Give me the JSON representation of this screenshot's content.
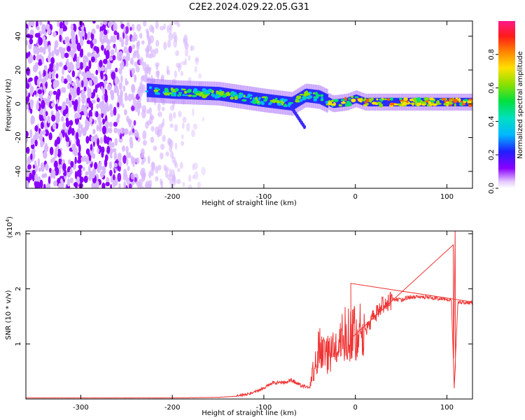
{
  "title": "C2E2.2024.029.22.05.G31",
  "colors": {
    "snr_line": "#ef3434",
    "axis": "#000000"
  },
  "chart_data": [
    {
      "type": "heatmap",
      "title": "C2E2.2024.029.22.05.G31",
      "xlabel": "Height of straight line (km)",
      "ylabel": "Frequency (Hz)",
      "xlim": [
        -360,
        128
      ],
      "ylim": [
        -50,
        49
      ],
      "xticks": [
        -300,
        -200,
        -100,
        0,
        100
      ],
      "yticks": [
        -40,
        -20,
        0,
        20,
        40
      ],
      "colorbar": {
        "label": "Normalized spectral amplitude",
        "range": [
          0,
          1
        ],
        "ticks": [
          0.0,
          0.2,
          0.4,
          0.6,
          0.8
        ]
      },
      "regions": [
        {
          "name": "noise",
          "x_range": [
            -360,
            -165
          ],
          "y_range": [
            -50,
            49
          ],
          "amplitude": 0.08
        },
        {
          "name": "signal_trace",
          "path": [
            [
              -228,
              8
            ],
            [
              -200,
              7
            ],
            [
              -150,
              6
            ],
            [
              -100,
              2
            ],
            [
              -70,
              0
            ],
            [
              -55,
              5
            ],
            [
              -40,
              4
            ],
            [
              -25,
              0
            ],
            [
              -10,
              1
            ],
            [
              0,
              3
            ],
            [
              10,
              1
            ],
            [
              40,
              1
            ],
            [
              100,
              1
            ],
            [
              128,
              1
            ]
          ],
          "amplitude": 0.65
        }
      ]
    },
    {
      "type": "line",
      "xlabel": "Height of straight line (km)",
      "ylabel": "SNR (10 * v/v)",
      "y_multiplier": "(x10",
      "y_multiplier_exp": "4",
      "multiplier_close": ")",
      "xlim": [
        -360,
        128
      ],
      "ylim": [
        0,
        3.05
      ],
      "xticks": [
        -300,
        -200,
        -100,
        0,
        100
      ],
      "yticks": [
        1,
        2,
        3
      ],
      "series": [
        {
          "x": [
            -360,
            -300,
            -200,
            -150,
            -130,
            -110,
            -100,
            -90,
            -80,
            -70,
            -60,
            -50,
            -45,
            -40,
            -30,
            -20,
            -10,
            -5,
            0,
            10,
            20,
            30,
            40,
            50,
            60,
            80,
            100,
            105,
            108,
            112,
            128
          ],
          "y": [
            0.02,
            0.02,
            0.02,
            0.03,
            0.05,
            0.12,
            0.2,
            0.3,
            0.3,
            0.35,
            0.25,
            0.2,
            0.6,
            0.9,
            0.8,
            0.9,
            1.2,
            1.1,
            1.25,
            1.2,
            1.5,
            1.7,
            1.8,
            1.8,
            1.85,
            1.85,
            1.8,
            1.8,
            0.2,
            1.75,
            1.75
          ]
        }
      ],
      "spikes": [
        {
          "x": -5,
          "y": 2.1
        },
        {
          "x": 107,
          "y": 2.8
        },
        {
          "x": 109,
          "y": 3.05
        },
        {
          "x": 108,
          "y": 0.25
        }
      ]
    }
  ]
}
